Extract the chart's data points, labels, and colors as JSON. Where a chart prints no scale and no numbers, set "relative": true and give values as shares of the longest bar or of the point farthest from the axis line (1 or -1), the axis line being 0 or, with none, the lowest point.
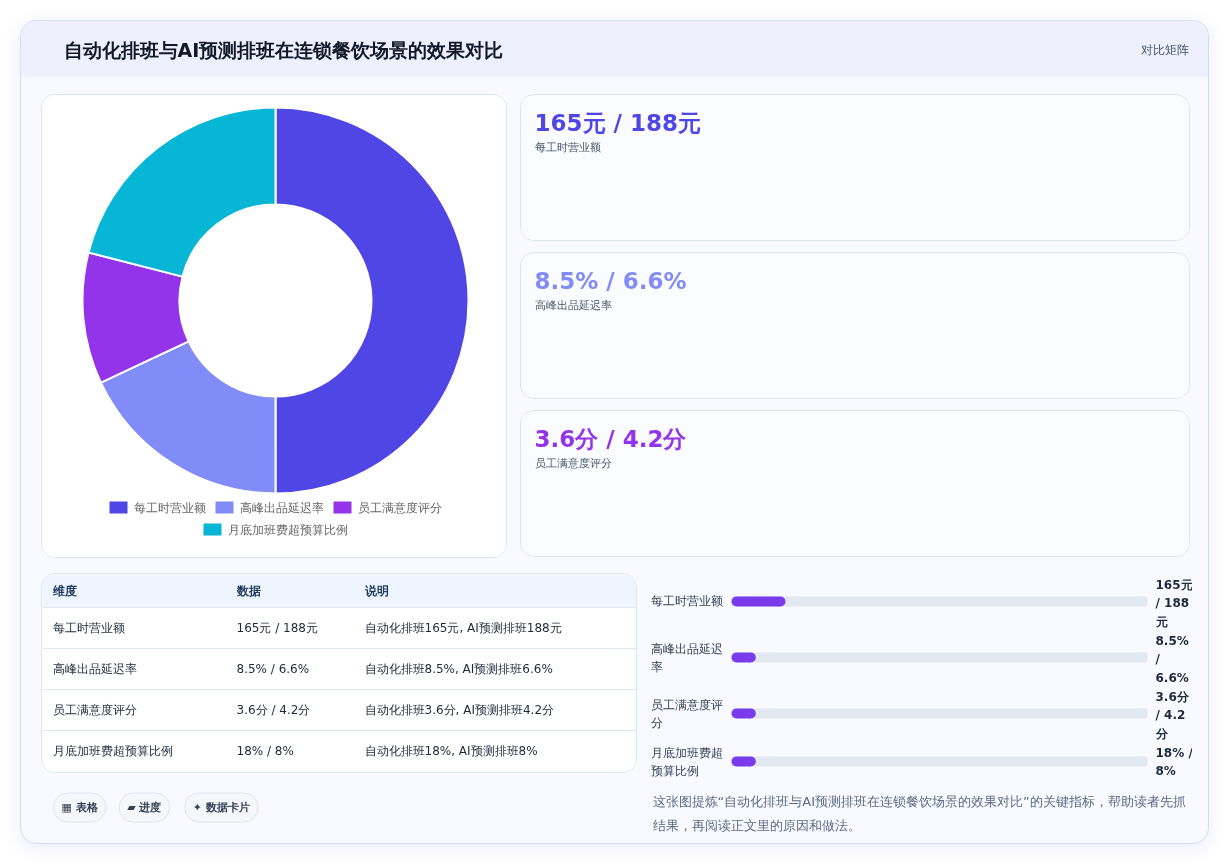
{
  "chart_data": [
    {
      "type": "other",
      "title": "自动化排班与AI预测排班在连锁餐饮场景的效果对比",
      "annotations": [
        "对比矩阵"
      ]
    },
    {
      "type": "donut",
      "categories": [
        "每工时营业额",
        "高峰出品延迟率",
        "员工满意度评分",
        "月底加班费超预算比例"
      ],
      "values": [
        50,
        18,
        11,
        21
      ],
      "colors": [
        "#4f46e5",
        "#818cf8",
        "#9333ea",
        "#06b6d4"
      ],
      "legend": "bottom"
    },
    {
      "type": "other",
      "categories": [
        "每工时营业额",
        "高峰出品延迟率",
        "员工满意度评分"
      ],
      "value_labels": [
        "165元 / 188元",
        "8.5% / 6.6%",
        "3.6分 / 4.2分"
      ]
    },
    {
      "type": "other",
      "categories": [
        "维度",
        "数据",
        "说明"
      ],
      "cell_labels": [
        [
          "每工时营业额",
          "165元 / 188元",
          "自动化排班165元, AI预测排班188元"
        ],
        [
          "高峰出品延迟率",
          "8.5% / 6.6%",
          "自动化排班8.5%, AI预测排班6.6%"
        ],
        [
          "员工满意度评分",
          "3.6分 / 4.2分",
          "自动化排班3.6分, AI预测排班4.2分"
        ],
        [
          "月底加班费超预算比例",
          "18% / 8%",
          "自动化排班18%, AI预测排班8%"
        ]
      ]
    },
    {
      "type": "bar",
      "orientation": "horizontal",
      "relative": true,
      "categories": [
        "每工时营业额",
        "高峰出品延迟率",
        "员工满意度评分",
        "月底加班费超预算比例"
      ],
      "values": [
        1,
        0.45,
        0.45,
        0.45
      ],
      "color": "#7c3aed",
      "annotations": [
        "165元 / 188元",
        "8.5% / 6.6%",
        "3.6分 / 4.2分",
        "18% / 8%",
        "这张图提炼“自动化排班与AI预测排班在连锁餐饮场景的效果对比”的关键指标，帮助读者先抓结果，再阅读正文里的原因和做法。"
      ]
    },
    {
      "type": "other",
      "annotations": [
        "▦ 表格",
        "▰ 进度",
        "✦ 数据卡片"
      ]
    }
  ]
}
